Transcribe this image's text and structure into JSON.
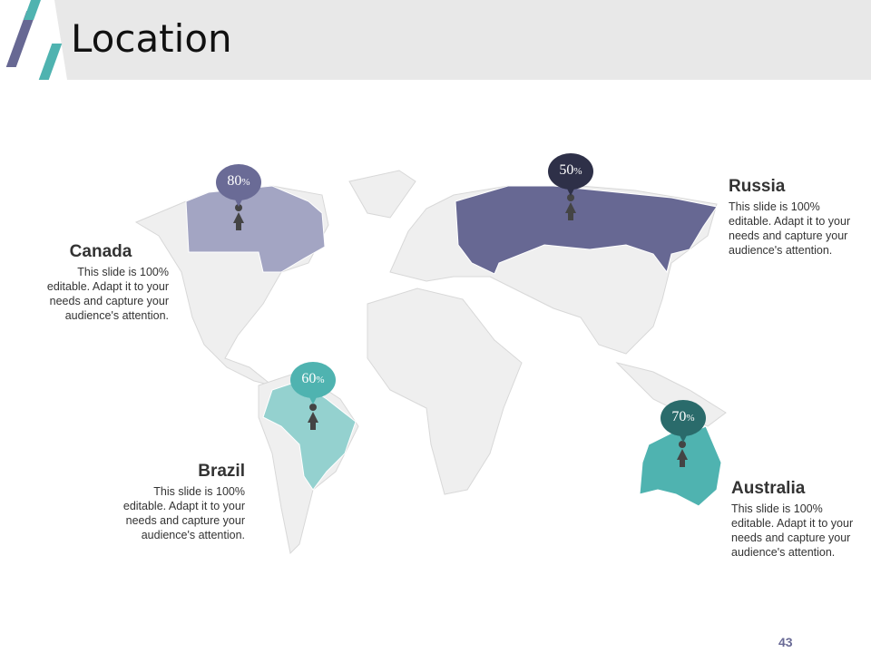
{
  "header": {
    "title": "Location"
  },
  "colors": {
    "purple": "#676893",
    "light_purple": "#a3a5c3",
    "teal": "#4fb3b0",
    "light_teal": "#94d1cf",
    "dark": "#2e3048",
    "land": "#efefef"
  },
  "regions": [
    {
      "name": "Canada",
      "percent": "80",
      "unit": "%",
      "description": "This slide is 100% editable. Adapt it to your needs and capture your audience's attention.",
      "icon": "person-pin-icon"
    },
    {
      "name": "Russia",
      "percent": "50",
      "unit": "%",
      "description": "This slide is 100% editable. Adapt it to your needs and capture your audience's attention.",
      "icon": "person-pin-icon"
    },
    {
      "name": "Brazil",
      "percent": "60",
      "unit": "%",
      "description": "This slide is 100% editable. Adapt it to your needs and capture your audience's attention.",
      "icon": "person-pin-icon"
    },
    {
      "name": "Australia",
      "percent": "70",
      "unit": "%",
      "description": "This slide is 100% editable. Adapt it to your needs and capture your audience's attention.",
      "icon": "person-pin-icon"
    }
  ],
  "page_number": "43"
}
